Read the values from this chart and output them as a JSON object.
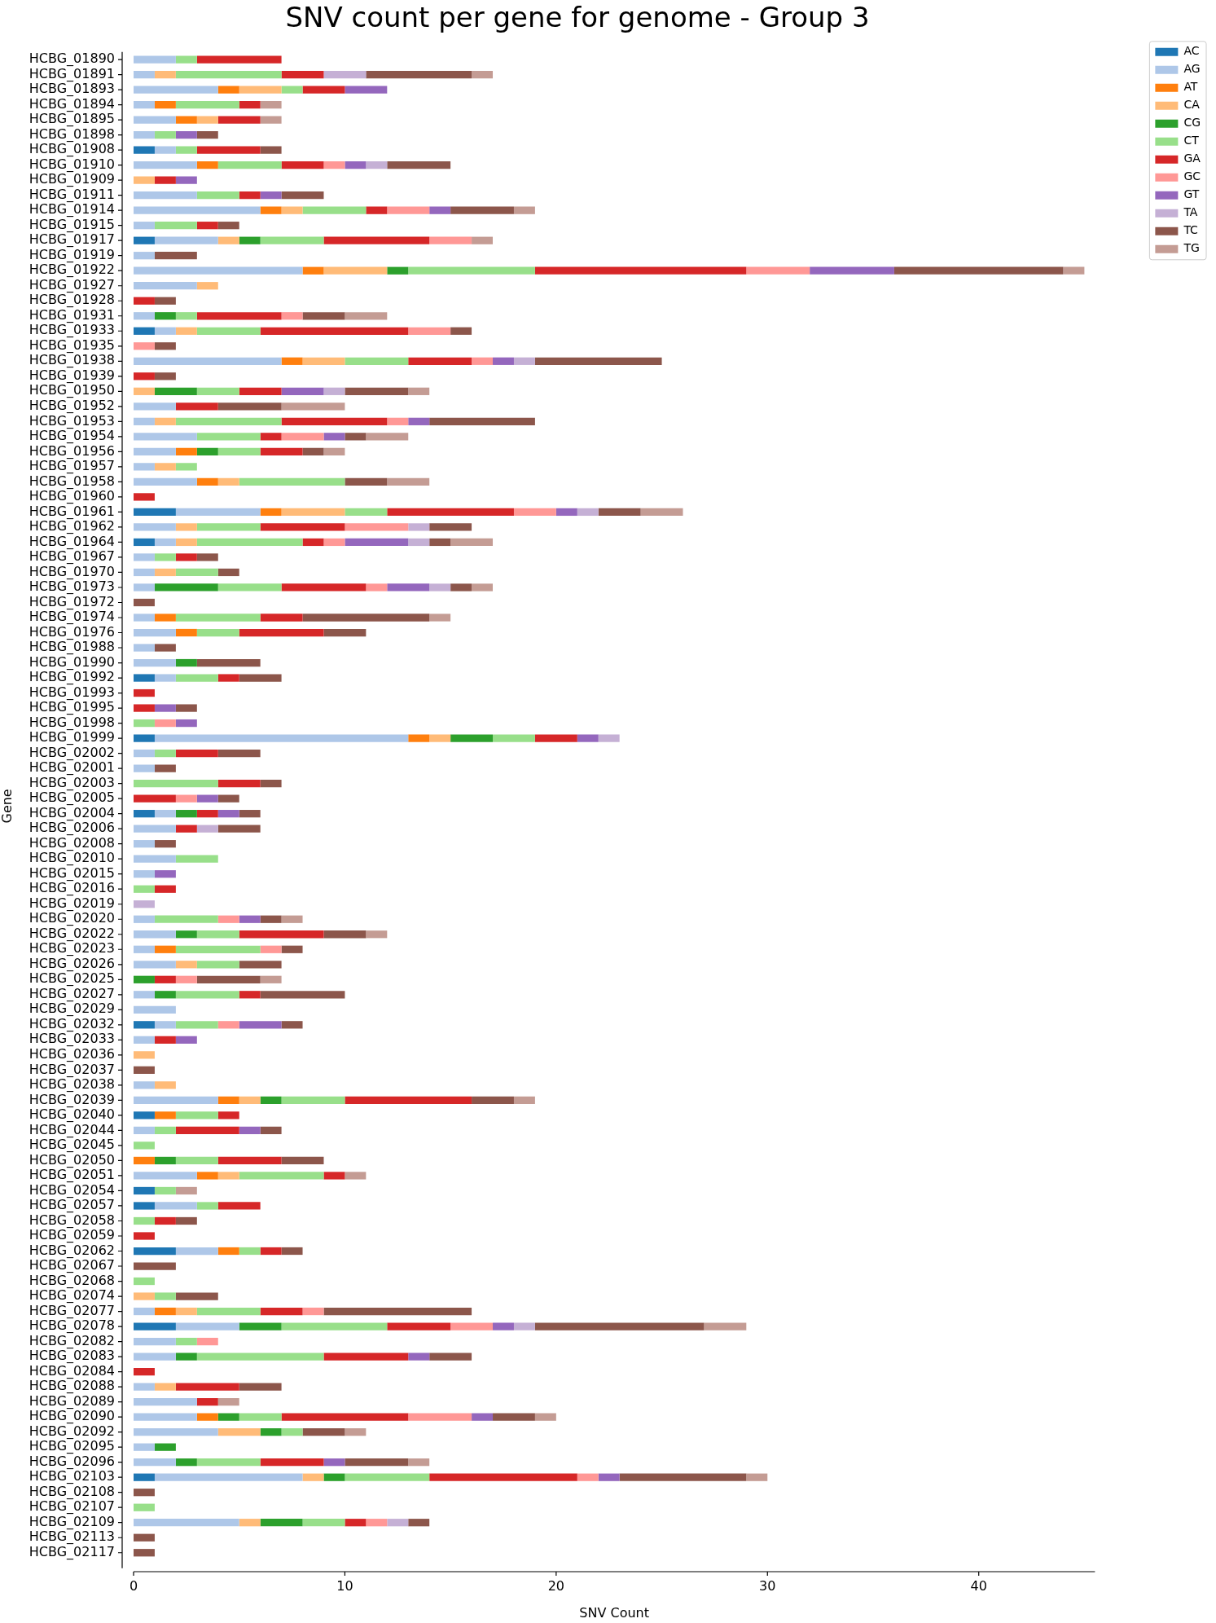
{
  "chart_data": {
    "type": "bar",
    "orientation": "horizontal",
    "stacked": true,
    "title": "SNV count per gene for genome - Group 3",
    "xlabel": "SNV Count",
    "ylabel": "Gene",
    "legend": "top right",
    "xlim": [
      0,
      45.5
    ],
    "xticks": [
      0,
      10,
      20,
      30,
      40
    ],
    "categories": [
      "HCBG_01890",
      "HCBG_01891",
      "HCBG_01893",
      "HCBG_01894",
      "HCBG_01895",
      "HCBG_01898",
      "HCBG_01908",
      "HCBG_01910",
      "HCBG_01909",
      "HCBG_01911",
      "HCBG_01914",
      "HCBG_01915",
      "HCBG_01917",
      "HCBG_01919",
      "HCBG_01922",
      "HCBG_01927",
      "HCBG_01928",
      "HCBG_01931",
      "HCBG_01933",
      "HCBG_01935",
      "HCBG_01938",
      "HCBG_01939",
      "HCBG_01950",
      "HCBG_01952",
      "HCBG_01953",
      "HCBG_01954",
      "HCBG_01956",
      "HCBG_01957",
      "HCBG_01958",
      "HCBG_01960",
      "HCBG_01961",
      "HCBG_01962",
      "HCBG_01964",
      "HCBG_01967",
      "HCBG_01970",
      "HCBG_01973",
      "HCBG_01972",
      "HCBG_01974",
      "HCBG_01976",
      "HCBG_01988",
      "HCBG_01990",
      "HCBG_01992",
      "HCBG_01993",
      "HCBG_01995",
      "HCBG_01998",
      "HCBG_01999",
      "HCBG_02002",
      "HCBG_02001",
      "HCBG_02003",
      "HCBG_02005",
      "HCBG_02004",
      "HCBG_02006",
      "HCBG_02008",
      "HCBG_02010",
      "HCBG_02015",
      "HCBG_02016",
      "HCBG_02019",
      "HCBG_02020",
      "HCBG_02022",
      "HCBG_02023",
      "HCBG_02026",
      "HCBG_02025",
      "HCBG_02027",
      "HCBG_02029",
      "HCBG_02032",
      "HCBG_02033",
      "HCBG_02036",
      "HCBG_02037",
      "HCBG_02038",
      "HCBG_02039",
      "HCBG_02040",
      "HCBG_02044",
      "HCBG_02045",
      "HCBG_02050",
      "HCBG_02051",
      "HCBG_02054",
      "HCBG_02057",
      "HCBG_02058",
      "HCBG_02059",
      "HCBG_02062",
      "HCBG_02067",
      "HCBG_02068",
      "HCBG_02074",
      "HCBG_02077",
      "HCBG_02078",
      "HCBG_02082",
      "HCBG_02083",
      "HCBG_02084",
      "HCBG_02088",
      "HCBG_02089",
      "HCBG_02090",
      "HCBG_02092",
      "HCBG_02095",
      "HCBG_02096",
      "HCBG_02103",
      "HCBG_02108",
      "HCBG_02107",
      "HCBG_02109",
      "HCBG_02113",
      "HCBG_02117"
    ],
    "series": [
      {
        "name": "AC",
        "color": "#1f77b4",
        "values": [
          0,
          0,
          0,
          0,
          0,
          0,
          1,
          0,
          0,
          0,
          0,
          0,
          1,
          0,
          0,
          0,
          0,
          0,
          1,
          0,
          0,
          0,
          0,
          0,
          0,
          0,
          0,
          0,
          0,
          0,
          2,
          0,
          1,
          0,
          0,
          0,
          0,
          0,
          0,
          0,
          0,
          1,
          0,
          0,
          0,
          1,
          0,
          0,
          0,
          0,
          1,
          0,
          0,
          0,
          0,
          0,
          0,
          0,
          0,
          0,
          0,
          0,
          0,
          0,
          1,
          0,
          0,
          0,
          0,
          0,
          1,
          0,
          0,
          0,
          0,
          1,
          1,
          0,
          0,
          2,
          0,
          0,
          0,
          0,
          2,
          0,
          0,
          0,
          0,
          0,
          0,
          0,
          0,
          0,
          1,
          0,
          0,
          0,
          0,
          0
        ]
      },
      {
        "name": "AG",
        "color": "#aec7e8",
        "values": [
          2,
          1,
          4,
          1,
          2,
          1,
          1,
          3,
          0,
          3,
          6,
          1,
          3,
          1,
          8,
          3,
          0,
          1,
          1,
          0,
          7,
          0,
          0,
          2,
          1,
          3,
          2,
          1,
          3,
          0,
          4,
          2,
          1,
          1,
          1,
          1,
          0,
          1,
          2,
          1,
          2,
          1,
          0,
          0,
          0,
          12,
          1,
          1,
          0,
          0,
          1,
          2,
          1,
          2,
          1,
          0,
          0,
          1,
          2,
          1,
          2,
          0,
          1,
          2,
          1,
          1,
          0,
          0,
          1,
          4,
          0,
          1,
          0,
          0,
          3,
          0,
          2,
          0,
          0,
          2,
          0,
          0,
          0,
          1,
          3,
          2,
          2,
          0,
          1,
          3,
          3,
          4,
          1,
          2,
          7,
          0,
          0,
          5,
          0,
          0
        ]
      },
      {
        "name": "AT",
        "color": "#ff7f0e",
        "values": [
          0,
          0,
          1,
          1,
          1,
          0,
          0,
          1,
          0,
          0,
          1,
          0,
          0,
          0,
          1,
          0,
          0,
          0,
          0,
          0,
          1,
          0,
          0,
          0,
          0,
          0,
          1,
          0,
          1,
          0,
          1,
          0,
          0,
          0,
          0,
          0,
          0,
          1,
          1,
          0,
          0,
          0,
          0,
          0,
          0,
          1,
          0,
          0,
          0,
          0,
          0,
          0,
          0,
          0,
          0,
          0,
          0,
          0,
          0,
          1,
          0,
          0,
          0,
          0,
          0,
          0,
          0,
          0,
          0,
          1,
          1,
          0,
          0,
          1,
          1,
          0,
          0,
          0,
          0,
          1,
          0,
          0,
          0,
          1,
          0,
          0,
          0,
          0,
          0,
          0,
          1,
          0,
          0,
          0,
          0,
          0,
          0,
          0,
          0,
          0
        ]
      },
      {
        "name": "CA",
        "color": "#ffbb78",
        "values": [
          0,
          1,
          2,
          0,
          1,
          0,
          0,
          0,
          1,
          0,
          1,
          0,
          1,
          0,
          3,
          1,
          0,
          0,
          1,
          0,
          2,
          0,
          1,
          0,
          1,
          0,
          0,
          1,
          1,
          0,
          3,
          1,
          1,
          0,
          1,
          0,
          0,
          0,
          0,
          0,
          0,
          0,
          0,
          0,
          0,
          1,
          0,
          0,
          0,
          0,
          0,
          0,
          0,
          0,
          0,
          0,
          0,
          0,
          0,
          0,
          1,
          0,
          0,
          0,
          0,
          0,
          1,
          0,
          1,
          1,
          0,
          0,
          0,
          0,
          1,
          0,
          0,
          0,
          0,
          0,
          0,
          0,
          1,
          1,
          0,
          0,
          0,
          0,
          1,
          0,
          0,
          2,
          0,
          0,
          1,
          0,
          0,
          1,
          0,
          0
        ]
      },
      {
        "name": "CG",
        "color": "#2ca02c",
        "values": [
          0,
          0,
          0,
          0,
          0,
          0,
          0,
          0,
          0,
          0,
          0,
          0,
          1,
          0,
          1,
          0,
          0,
          1,
          0,
          0,
          0,
          0,
          2,
          0,
          0,
          0,
          1,
          0,
          0,
          0,
          0,
          0,
          0,
          0,
          0,
          3,
          0,
          0,
          0,
          0,
          1,
          0,
          0,
          0,
          0,
          2,
          0,
          0,
          0,
          0,
          1,
          0,
          0,
          0,
          0,
          0,
          0,
          0,
          1,
          0,
          0,
          1,
          1,
          0,
          0,
          0,
          0,
          0,
          0,
          1,
          0,
          0,
          0,
          1,
          0,
          0,
          0,
          0,
          0,
          0,
          0,
          0,
          0,
          0,
          2,
          0,
          1,
          0,
          0,
          0,
          1,
          1,
          1,
          1,
          1,
          0,
          0,
          2,
          0,
          0
        ]
      },
      {
        "name": "CT",
        "color": "#98df8a",
        "values": [
          1,
          5,
          1,
          3,
          0,
          1,
          1,
          3,
          0,
          2,
          3,
          2,
          3,
          0,
          6,
          0,
          0,
          1,
          3,
          0,
          3,
          0,
          2,
          0,
          5,
          3,
          2,
          1,
          5,
          0,
          2,
          3,
          5,
          1,
          2,
          3,
          0,
          4,
          2,
          0,
          0,
          2,
          0,
          0,
          1,
          2,
          1,
          0,
          4,
          0,
          0,
          0,
          0,
          2,
          0,
          1,
          0,
          3,
          2,
          4,
          2,
          0,
          3,
          0,
          2,
          0,
          0,
          0,
          0,
          3,
          2,
          1,
          1,
          2,
          4,
          1,
          1,
          1,
          0,
          1,
          0,
          1,
          1,
          3,
          5,
          1,
          6,
          0,
          0,
          0,
          2,
          1,
          0,
          3,
          4,
          0,
          1,
          2,
          0,
          0
        ]
      },
      {
        "name": "GA",
        "color": "#d62728",
        "values": [
          4,
          2,
          2,
          1,
          2,
          0,
          3,
          2,
          1,
          1,
          1,
          1,
          5,
          0,
          10,
          0,
          1,
          4,
          7,
          0,
          3,
          1,
          2,
          2,
          5,
          1,
          2,
          0,
          0,
          1,
          6,
          4,
          1,
          1,
          0,
          4,
          0,
          2,
          4,
          0,
          0,
          1,
          1,
          1,
          0,
          2,
          2,
          0,
          2,
          2,
          1,
          1,
          0,
          0,
          0,
          1,
          0,
          0,
          4,
          0,
          0,
          1,
          1,
          0,
          0,
          1,
          0,
          0,
          0,
          6,
          1,
          3,
          0,
          3,
          1,
          0,
          2,
          1,
          1,
          1,
          0,
          0,
          0,
          2,
          3,
          0,
          4,
          1,
          3,
          1,
          6,
          0,
          0,
          3,
          7,
          0,
          0,
          1,
          0,
          0
        ]
      },
      {
        "name": "GC",
        "color": "#ff9896",
        "values": [
          0,
          0,
          0,
          0,
          0,
          0,
          0,
          1,
          0,
          0,
          2,
          0,
          2,
          0,
          3,
          0,
          0,
          1,
          2,
          1,
          1,
          0,
          0,
          0,
          1,
          2,
          0,
          0,
          0,
          0,
          2,
          3,
          1,
          0,
          0,
          1,
          0,
          0,
          0,
          0,
          0,
          0,
          0,
          0,
          1,
          0,
          0,
          0,
          0,
          1,
          0,
          0,
          0,
          0,
          0,
          0,
          0,
          1,
          0,
          1,
          0,
          1,
          0,
          0,
          1,
          0,
          0,
          0,
          0,
          0,
          0,
          0,
          0,
          0,
          0,
          0,
          0,
          0,
          0,
          0,
          0,
          0,
          0,
          1,
          2,
          1,
          0,
          0,
          0,
          0,
          3,
          0,
          0,
          0,
          1,
          0,
          0,
          1,
          0,
          0
        ]
      },
      {
        "name": "GT",
        "color": "#9467bd",
        "values": [
          0,
          0,
          2,
          0,
          0,
          1,
          0,
          1,
          1,
          1,
          1,
          0,
          0,
          0,
          4,
          0,
          0,
          0,
          0,
          0,
          1,
          0,
          2,
          0,
          1,
          1,
          0,
          0,
          0,
          0,
          1,
          0,
          3,
          0,
          0,
          2,
          0,
          0,
          0,
          0,
          0,
          0,
          0,
          1,
          1,
          1,
          0,
          0,
          0,
          1,
          1,
          0,
          0,
          0,
          1,
          0,
          0,
          1,
          0,
          0,
          0,
          0,
          0,
          0,
          2,
          1,
          0,
          0,
          0,
          0,
          0,
          1,
          0,
          0,
          0,
          0,
          0,
          0,
          0,
          0,
          0,
          0,
          0,
          0,
          1,
          0,
          1,
          0,
          0,
          0,
          1,
          0,
          0,
          1,
          1,
          0,
          0,
          0,
          0,
          0
        ]
      },
      {
        "name": "TA",
        "color": "#c5b0d5",
        "values": [
          0,
          2,
          0,
          0,
          0,
          0,
          0,
          1,
          0,
          0,
          0,
          0,
          0,
          0,
          0,
          0,
          0,
          0,
          0,
          0,
          1,
          0,
          1,
          0,
          0,
          0,
          0,
          0,
          0,
          0,
          1,
          1,
          1,
          0,
          0,
          1,
          0,
          0,
          0,
          0,
          0,
          0,
          0,
          0,
          0,
          1,
          0,
          0,
          0,
          0,
          0,
          1,
          0,
          0,
          0,
          0,
          1,
          0,
          0,
          0,
          0,
          0,
          0,
          0,
          0,
          0,
          0,
          0,
          0,
          0,
          0,
          0,
          0,
          0,
          0,
          0,
          0,
          0,
          0,
          0,
          0,
          0,
          0,
          0,
          1,
          0,
          0,
          0,
          0,
          0,
          0,
          0,
          0,
          0,
          0,
          0,
          0,
          1,
          0,
          0
        ]
      },
      {
        "name": "TC",
        "color": "#8c564b",
        "values": [
          0,
          5,
          0,
          0,
          0,
          1,
          1,
          3,
          0,
          2,
          3,
          1,
          0,
          2,
          8,
          0,
          1,
          2,
          1,
          1,
          6,
          1,
          3,
          3,
          5,
          1,
          1,
          0,
          2,
          0,
          2,
          2,
          1,
          1,
          1,
          1,
          1,
          6,
          2,
          1,
          3,
          2,
          0,
          1,
          0,
          0,
          2,
          1,
          1,
          1,
          1,
          2,
          1,
          0,
          0,
          0,
          0,
          1,
          2,
          1,
          2,
          3,
          4,
          0,
          1,
          0,
          0,
          1,
          0,
          2,
          0,
          1,
          0,
          2,
          0,
          0,
          0,
          1,
          0,
          1,
          2,
          0,
          2,
          7,
          8,
          0,
          2,
          0,
          2,
          0,
          2,
          2,
          0,
          3,
          6,
          1,
          0,
          1,
          1,
          1
        ]
      },
      {
        "name": "TG",
        "color": "#c49c94",
        "values": [
          0,
          1,
          0,
          1,
          1,
          0,
          0,
          0,
          0,
          0,
          1,
          0,
          1,
          0,
          1,
          0,
          0,
          2,
          0,
          0,
          0,
          0,
          1,
          3,
          0,
          2,
          1,
          0,
          2,
          0,
          2,
          0,
          2,
          0,
          0,
          1,
          0,
          1,
          0,
          0,
          0,
          0,
          0,
          0,
          0,
          0,
          0,
          0,
          0,
          0,
          0,
          0,
          0,
          0,
          0,
          0,
          0,
          1,
          1,
          0,
          0,
          1,
          0,
          0,
          0,
          0,
          0,
          0,
          0,
          1,
          0,
          0,
          0,
          0,
          1,
          1,
          0,
          0,
          0,
          0,
          0,
          0,
          0,
          0,
          2,
          0,
          0,
          0,
          0,
          1,
          1,
          1,
          0,
          1,
          1,
          0,
          0,
          0,
          0,
          0
        ]
      }
    ]
  }
}
